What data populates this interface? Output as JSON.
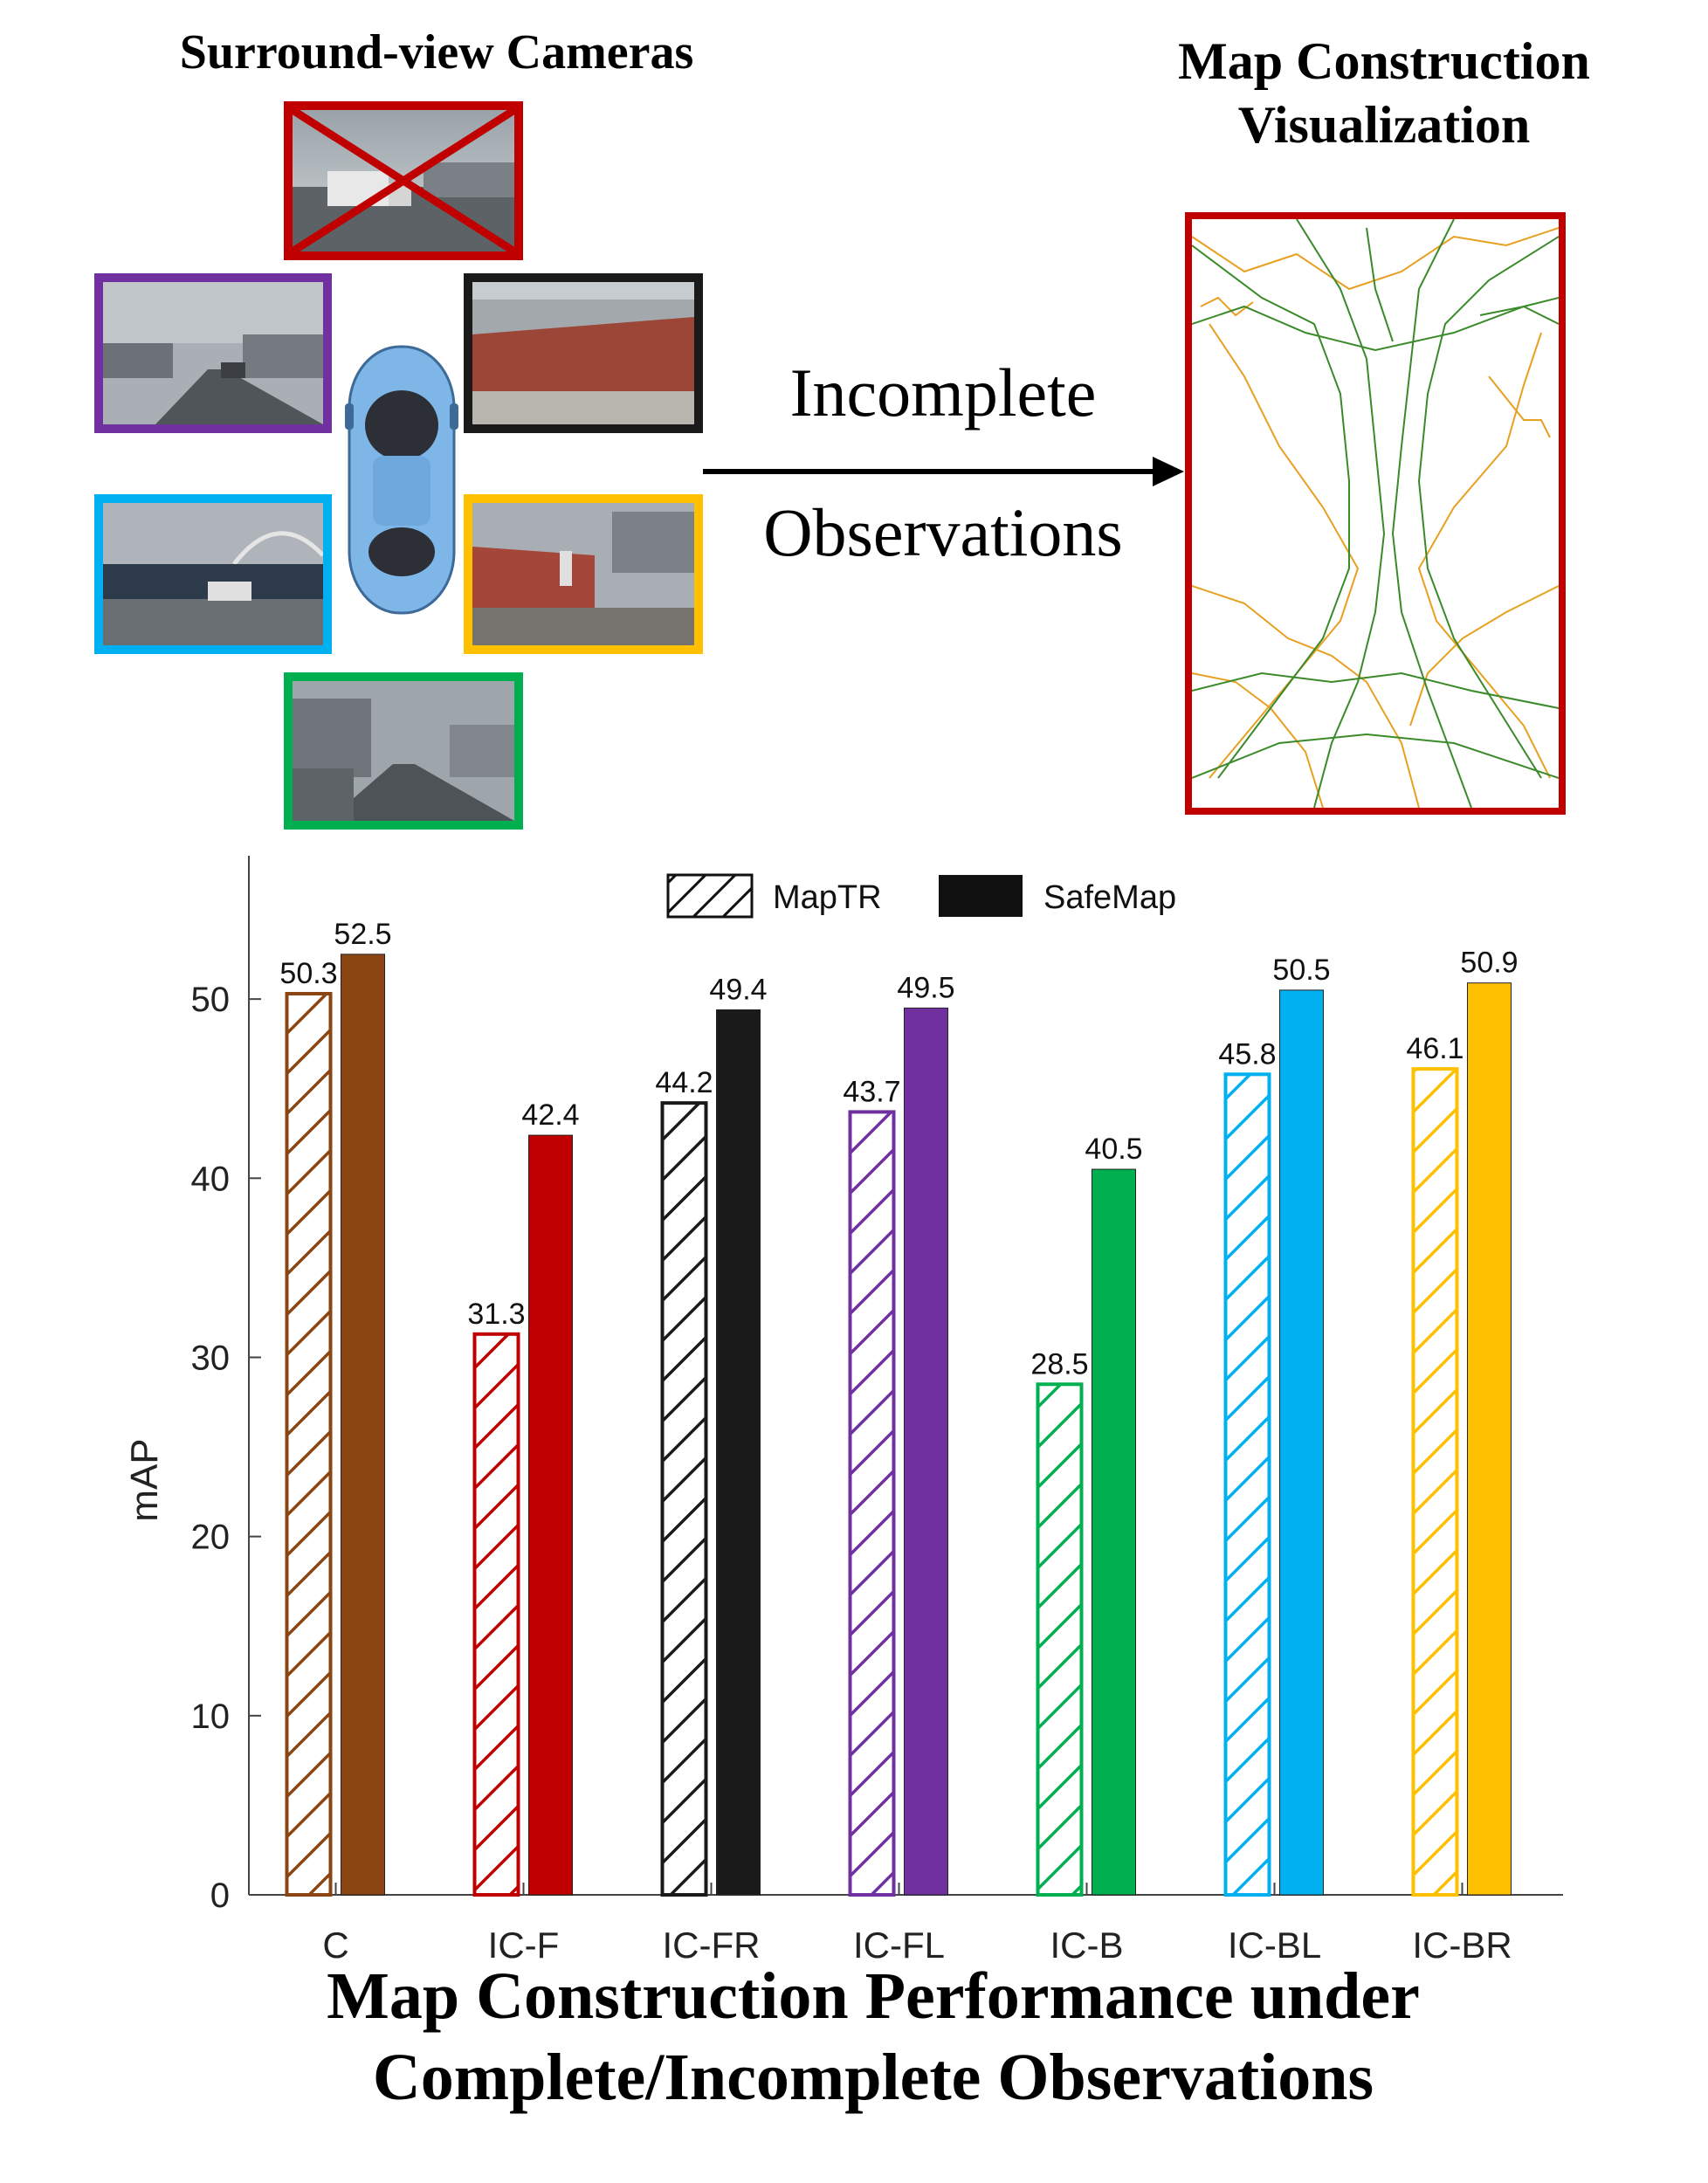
{
  "figure": {
    "cameras_title": "Surround-view Cameras",
    "map_title_line1": "Map Construction",
    "map_title_line2": "Visualization",
    "arrow_label_line1": "Incomplete",
    "arrow_label_line2": "Observations",
    "bottom_title_line1": "Map Construction Performance under",
    "bottom_title_line2": "Complete/Incomplete Observations",
    "camera_colors": {
      "front": "#c00000",
      "front_left": "#7030a0",
      "front_right": "#1a1a1a",
      "back_left": "#00b0f0",
      "back_right": "#ffc000",
      "back": "#00b050"
    },
    "map_colors": {
      "frame": "#c00000",
      "divider": "#3a8a2a",
      "boundary": "#e8a020"
    }
  },
  "chart_data": {
    "type": "bar",
    "categories": [
      "C",
      "IC-F",
      "IC-FR",
      "IC-FL",
      "IC-B",
      "IC-BL",
      "IC-BR"
    ],
    "category_colors": [
      "#8b4513",
      "#c00000",
      "#1a1a1a",
      "#7030a0",
      "#00b050",
      "#00b0f0",
      "#ffc000"
    ],
    "series": [
      {
        "name": "MapTR",
        "values": [
          50.3,
          31.3,
          44.2,
          43.7,
          28.5,
          45.8,
          46.1
        ],
        "style": "hatched"
      },
      {
        "name": "SafeMap",
        "values": [
          52.5,
          42.4,
          49.4,
          49.5,
          40.5,
          50.5,
          50.9
        ],
        "style": "solid"
      }
    ],
    "value_labels": {
      "MapTR": [
        "50.3",
        "31.3",
        "44.2",
        "43.7",
        "28.5",
        "45.8",
        "46.1"
      ],
      "SafeMap": [
        "52.5",
        "42.4",
        "49.4",
        "49.5",
        "40.5",
        "50.5",
        "50.9"
      ]
    },
    "ylabel": "mAP",
    "ylim": [
      0,
      58
    ],
    "yticks": [
      0,
      10,
      20,
      30,
      40,
      50
    ],
    "ytick_labels": [
      "0",
      "10",
      "20",
      "30",
      "40",
      "50"
    ],
    "grid": false,
    "legend_position": "top-center"
  }
}
